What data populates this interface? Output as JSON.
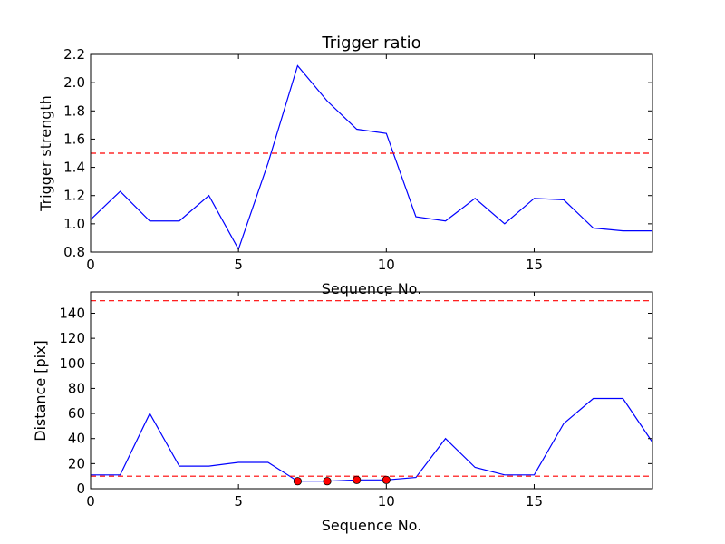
{
  "chart_data": [
    {
      "type": "line",
      "title": "Trigger ratio",
      "xlabel": "Sequence No.",
      "ylabel": "Trigger strength",
      "xlim": [
        0,
        19
      ],
      "ylim": [
        0.8,
        2.2
      ],
      "xticks": [
        0,
        5,
        10,
        15
      ],
      "yticks": [
        0.8,
        1.0,
        1.2,
        1.4,
        1.6,
        1.8,
        2.0,
        2.2
      ],
      "series": [
        {
          "color": "#0000ff",
          "x": [
            0,
            1,
            2,
            3,
            4,
            5,
            6,
            7,
            8,
            9,
            10,
            11,
            12,
            13,
            14,
            15,
            16,
            17,
            18,
            19
          ],
          "values": [
            1.03,
            1.23,
            1.02,
            1.02,
            1.2,
            0.82,
            1.43,
            2.12,
            1.87,
            1.67,
            1.64,
            1.05,
            1.02,
            1.18,
            1.0,
            1.18,
            1.17,
            0.97,
            0.95,
            0.95
          ]
        }
      ],
      "reference_lines": [
        {
          "y": 1.5,
          "color": "#ff0000",
          "style": "dashed"
        }
      ],
      "grid": false
    },
    {
      "type": "line",
      "title": "",
      "xlabel": "Sequence No.",
      "ylabel": "Distance [pix]",
      "xlim": [
        0,
        19
      ],
      "ylim": [
        0,
        157
      ],
      "xticks": [
        0,
        5,
        10,
        15
      ],
      "yticks": [
        0,
        20,
        40,
        60,
        80,
        100,
        120,
        140
      ],
      "series": [
        {
          "color": "#0000ff",
          "x": [
            0,
            1,
            2,
            3,
            4,
            5,
            6,
            7,
            8,
            9,
            10,
            11,
            12,
            13,
            14,
            15,
            16,
            17,
            18,
            19
          ],
          "values": [
            11,
            11,
            60,
            18,
            18,
            21,
            21,
            6,
            6,
            7,
            7,
            9,
            40,
            17,
            11,
            11,
            52,
            72,
            72,
            37
          ]
        }
      ],
      "markers": {
        "color": "#ff0000",
        "x": [
          7,
          8,
          9,
          10
        ],
        "values": [
          6,
          6,
          7,
          7
        ]
      },
      "reference_lines": [
        {
          "y": 150,
          "color": "#ff0000",
          "style": "dashed"
        },
        {
          "y": 10,
          "color": "#ff0000",
          "style": "dashed"
        }
      ],
      "grid": false
    }
  ]
}
